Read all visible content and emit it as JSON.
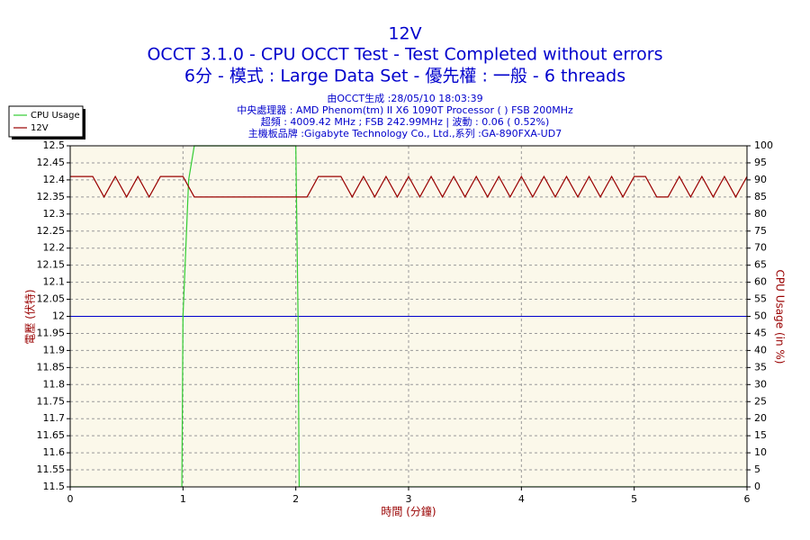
{
  "chart_data": {
    "type": "line",
    "title": "12V",
    "subtitle": [
      "OCCT 3.1.0 - CPU OCCT Test - Test Completed without errors",
      "6分 - 模式 : Large Data Set - 優先權 : 一般 - 6 threads"
    ],
    "notes": [
      "由OCCT生成 :28/05/10 18:03:39",
      "中央處理器 : AMD Phenom(tm) II X6 1090T Processor (    ) FSB 200MHz",
      "超頻 : 4009.42 MHz ; FSB 242.99MHz | 波動 : 0.06 ( 0.52%)",
      "主機板品牌 :Gigabyte Technology Co., Ltd.,系列 :GA-890FXA-UD7"
    ],
    "xlabel": "時間 (分鐘)",
    "ylabel": "電壓 (伏特)",
    "y2label": "CPU Usage (in %)",
    "xlim": [
      0,
      6
    ],
    "xticks": [
      0,
      1,
      2,
      3,
      4,
      5,
      6
    ],
    "ylim": [
      11.5,
      12.5
    ],
    "yticks": [
      11.5,
      11.55,
      11.6,
      11.65,
      11.7,
      11.75,
      11.8,
      11.85,
      11.9,
      11.95,
      12,
      12.05,
      12.1,
      12.15,
      12.2,
      12.25,
      12.3,
      12.35,
      12.4,
      12.45,
      12.5
    ],
    "y2lim": [
      0,
      100
    ],
    "y2ticks": [
      0,
      5,
      10,
      15,
      20,
      25,
      30,
      35,
      40,
      45,
      50,
      55,
      60,
      65,
      70,
      75,
      80,
      85,
      90,
      95,
      100
    ],
    "grid": true,
    "legend": "top-left",
    "reference_line": 12,
    "reference_color": "#0000cc",
    "series": [
      {
        "name": "CPU Usage",
        "color": "#33cc33",
        "axis": "y2",
        "x": [
          0,
          0.99,
          1.0,
          1.05,
          1.1,
          1.2,
          1.5,
          1.8,
          2.0,
          2.02,
          2.03,
          6
        ],
        "values": [
          0,
          0,
          50,
          90,
          100,
          100,
          100,
          100,
          100,
          50,
          0,
          0
        ]
      },
      {
        "name": "12V",
        "color": "#990000",
        "axis": "y",
        "x": [
          0,
          0.1,
          0.2,
          0.3,
          0.4,
          0.5,
          0.6,
          0.7,
          0.8,
          0.9,
          1.0,
          1.1,
          1.2,
          1.3,
          1.4,
          1.5,
          1.6,
          1.7,
          1.8,
          1.9,
          2.0,
          2.1,
          2.2,
          2.3,
          2.4,
          2.5,
          2.6,
          2.7,
          2.8,
          2.9,
          3.0,
          3.1,
          3.2,
          3.3,
          3.4,
          3.5,
          3.6,
          3.7,
          3.8,
          3.9,
          4.0,
          4.1,
          4.2,
          4.3,
          4.4,
          4.5,
          4.6,
          4.7,
          4.8,
          4.9,
          5.0,
          5.1,
          5.2,
          5.3,
          5.4,
          5.5,
          5.6,
          5.7,
          5.8,
          5.9,
          6.0
        ],
        "values": [
          12.41,
          12.41,
          12.41,
          12.35,
          12.41,
          12.35,
          12.41,
          12.35,
          12.41,
          12.41,
          12.41,
          12.35,
          12.35,
          12.35,
          12.35,
          12.35,
          12.35,
          12.35,
          12.35,
          12.35,
          12.35,
          12.35,
          12.41,
          12.41,
          12.41,
          12.35,
          12.41,
          12.35,
          12.41,
          12.35,
          12.41,
          12.35,
          12.41,
          12.35,
          12.41,
          12.35,
          12.41,
          12.35,
          12.41,
          12.35,
          12.41,
          12.35,
          12.41,
          12.35,
          12.41,
          12.35,
          12.41,
          12.35,
          12.41,
          12.35,
          12.41,
          12.41,
          12.35,
          12.35,
          12.41,
          12.35,
          12.41,
          12.35,
          12.41,
          12.35,
          12.41
        ]
      }
    ]
  }
}
